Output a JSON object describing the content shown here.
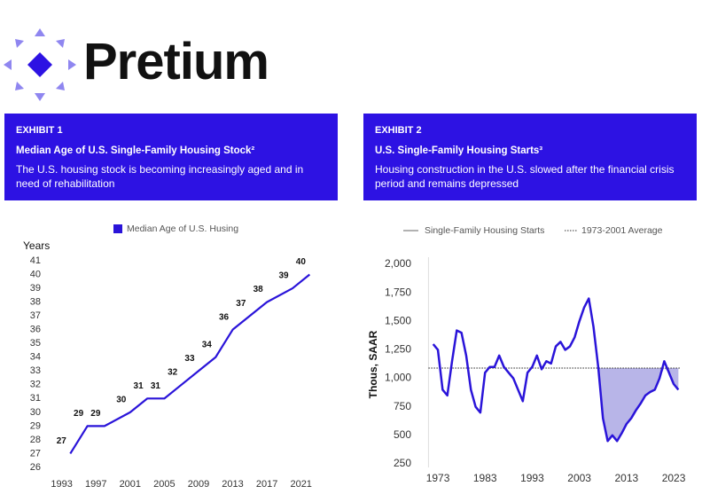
{
  "header": {
    "logo": "Pretium"
  },
  "exhibits": [
    {
      "label": "EXHIBIT 1",
      "title": "Median Age of U.S. Single-Family Housing Stock²",
      "subtitle": "The U.S. housing stock is becoming increasingly aged and in need of rehabilitation"
    },
    {
      "label": "EXHIBIT 2",
      "title": "U.S. Single-Family Housing Starts³",
      "subtitle": "Housing construction in the U.S. slowed after the financial crisis period and remains depressed"
    }
  ],
  "chart_data": [
    {
      "type": "line",
      "y_axis_title": "Years",
      "data_labels": true,
      "x": [
        1994,
        1996,
        1998,
        2001,
        2003,
        2005,
        2007,
        2009,
        2011,
        2013,
        2015,
        2017,
        2020,
        2022
      ],
      "series": [
        {
          "name": "Median Age of U.S. Husing",
          "color": "#2a14d9",
          "values": [
            27,
            29,
            29,
            30,
            31,
            31,
            32,
            33,
            34,
            36,
            37,
            38,
            39,
            40
          ]
        }
      ],
      "xlim": [
        1992,
        2023
      ],
      "xticks": [
        1993,
        1997,
        2001,
        2005,
        2009,
        2013,
        2017,
        2021
      ],
      "ylim": [
        26,
        41
      ],
      "yticks": [
        26,
        27,
        28,
        29,
        30,
        31,
        32,
        33,
        34,
        35,
        36,
        37,
        38,
        39,
        40,
        41
      ]
    },
    {
      "type": "line",
      "y_axis_title": "Thous, SAAR",
      "x": [
        1972,
        1973,
        1974,
        1975,
        1976,
        1977,
        1978,
        1979,
        1980,
        1981,
        1982,
        1983,
        1984,
        1985,
        1986,
        1987,
        1988,
        1989,
        1990,
        1991,
        1992,
        1993,
        1994,
        1995,
        1996,
        1997,
        1998,
        1999,
        2000,
        2001,
        2002,
        2003,
        2004,
        2005,
        2006,
        2007,
        2008,
        2009,
        2010,
        2011,
        2012,
        2013,
        2014,
        2015,
        2016,
        2017,
        2018,
        2019,
        2020,
        2021,
        2022,
        2023,
        2024
      ],
      "series": [
        {
          "name": "Single-Family Housing Starts",
          "color": "#2a14d9",
          "values": [
            1300,
            1250,
            900,
            850,
            1150,
            1420,
            1400,
            1200,
            900,
            750,
            700,
            1050,
            1100,
            1100,
            1200,
            1100,
            1050,
            1000,
            900,
            800,
            1050,
            1100,
            1200,
            1080,
            1150,
            1130,
            1280,
            1320,
            1250,
            1280,
            1360,
            1500,
            1620,
            1700,
            1450,
            1100,
            650,
            450,
            500,
            450,
            520,
            600,
            650,
            720,
            780,
            850,
            880,
            900,
            1000,
            1150,
            1050,
            950,
            900
          ]
        }
      ],
      "reference_line": {
        "name": "1973-2001 Average",
        "value": 1090,
        "color": "#222222"
      },
      "shade": {
        "from": 2007,
        "to": 2024,
        "color": "#b8b5e8"
      },
      "xlim": [
        1971,
        2026
      ],
      "xticks": [
        1973,
        1983,
        1993,
        2003,
        2013,
        2023
      ],
      "ylim": [
        250,
        2000
      ],
      "yticks": [
        250,
        500,
        {
          "value": 750,
          "label": "750"
        },
        {
          "value": 1000,
          "label": "1,000"
        },
        {
          "value": 1250,
          "label": "1,250"
        },
        {
          "value": 1500,
          "label": "1,500"
        },
        {
          "value": 1750,
          "label": "1,750"
        },
        {
          "value": 2000,
          "label": "2,000"
        }
      ]
    }
  ]
}
